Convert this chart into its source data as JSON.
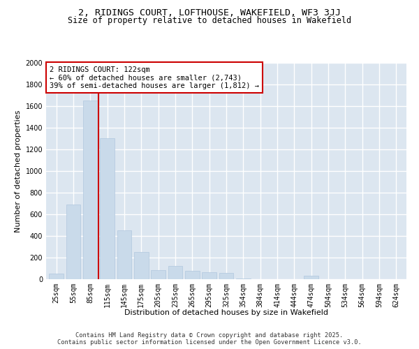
{
  "title_line1": "2, RIDINGS COURT, LOFTHOUSE, WAKEFIELD, WF3 3JJ",
  "title_line2": "Size of property relative to detached houses in Wakefield",
  "xlabel": "Distribution of detached houses by size in Wakefield",
  "ylabel": "Number of detached properties",
  "categories": [
    "25sqm",
    "55sqm",
    "85sqm",
    "115sqm",
    "145sqm",
    "175sqm",
    "205sqm",
    "235sqm",
    "265sqm",
    "295sqm",
    "325sqm",
    "354sqm",
    "384sqm",
    "414sqm",
    "444sqm",
    "474sqm",
    "504sqm",
    "534sqm",
    "564sqm",
    "594sqm",
    "624sqm"
  ],
  "values": [
    50,
    690,
    1650,
    1300,
    450,
    250,
    85,
    120,
    75,
    65,
    55,
    5,
    0,
    0,
    0,
    30,
    0,
    0,
    0,
    0,
    0
  ],
  "bar_color": "#c9daea",
  "bar_edge_color": "#b0c8de",
  "vline_color": "#cc0000",
  "vline_pos": 2.5,
  "annotation_text": "2 RIDINGS COURT: 122sqm\n← 60% of detached houses are smaller (2,743)\n39% of semi-detached houses are larger (1,812) →",
  "annotation_box_edgecolor": "#cc0000",
  "ylim": [
    0,
    2000
  ],
  "yticks": [
    0,
    200,
    400,
    600,
    800,
    1000,
    1200,
    1400,
    1600,
    1800,
    2000
  ],
  "background_color": "#dce6f0",
  "grid_color": "#ffffff",
  "footer_text": "Contains HM Land Registry data © Crown copyright and database right 2025.\nContains public sector information licensed under the Open Government Licence v3.0.",
  "title_fontsize": 9.5,
  "subtitle_fontsize": 8.5,
  "axis_label_fontsize": 8,
  "tick_fontsize": 7,
  "annotation_fontsize": 7.5,
  "footer_fontsize": 6.2
}
